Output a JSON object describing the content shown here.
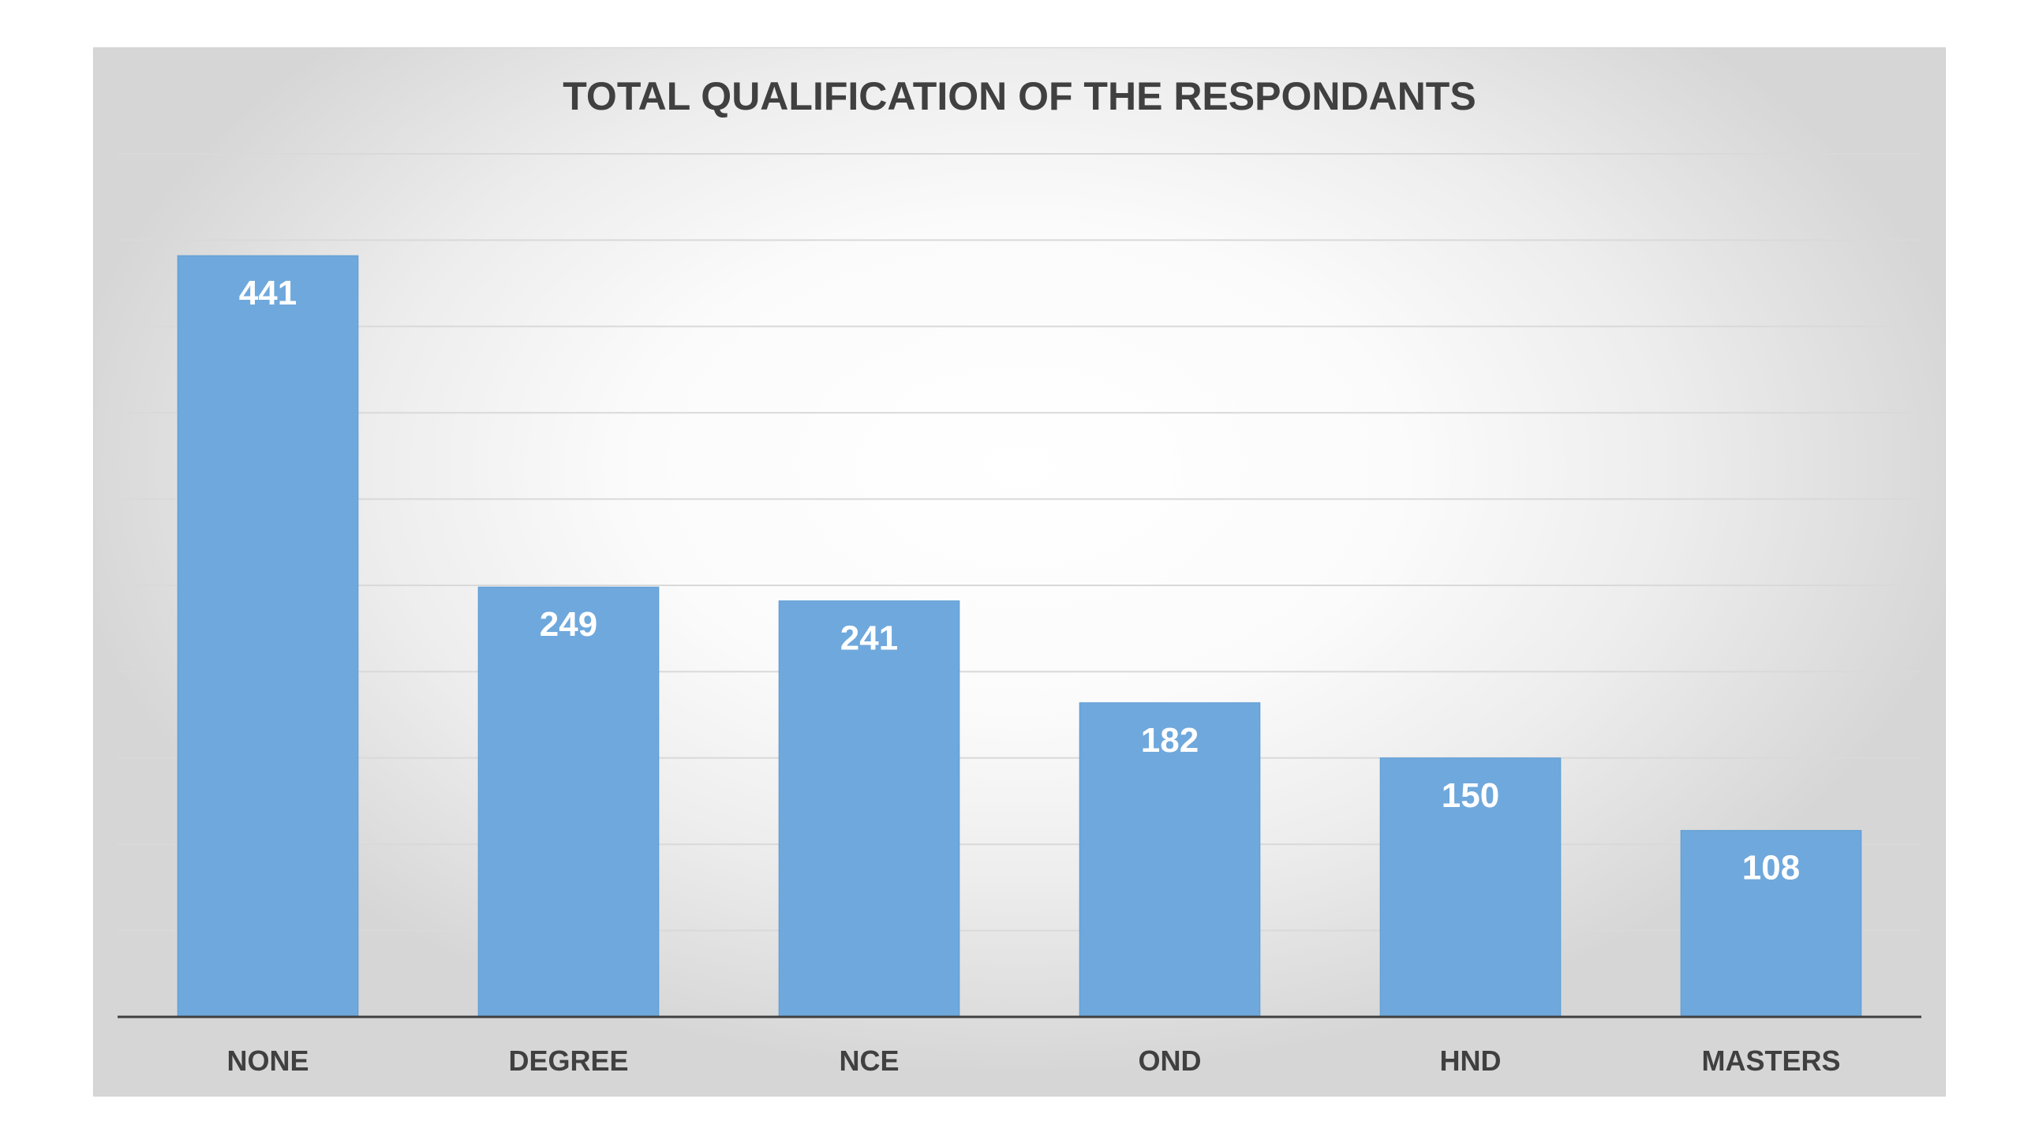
{
  "chart_data": {
    "type": "bar",
    "title": "TOTAL QUALIFICATION OF THE RESPONDANTS",
    "categories": [
      "NONE",
      "DEGREE",
      "NCE",
      "OND",
      "HND",
      "MASTERS"
    ],
    "values": [
      441,
      249,
      241,
      182,
      150,
      108
    ],
    "value_labels": [
      "441",
      "249",
      "241",
      "182",
      "150",
      "108"
    ],
    "xlabel": "",
    "ylabel": "",
    "ylim": [
      0,
      500
    ],
    "grid": true,
    "gridline_step": 50,
    "show_y_axis_labels": false,
    "data_labels": "inside-top",
    "legend": "none",
    "colors": {
      "bar": "#6fa8dc",
      "bar_edge": "#5b9bd5",
      "gridline": "#d9d9d9",
      "axis_line": "#404040",
      "title": "#404040",
      "tick_label": "#404040",
      "value_label": "#ffffff"
    }
  }
}
